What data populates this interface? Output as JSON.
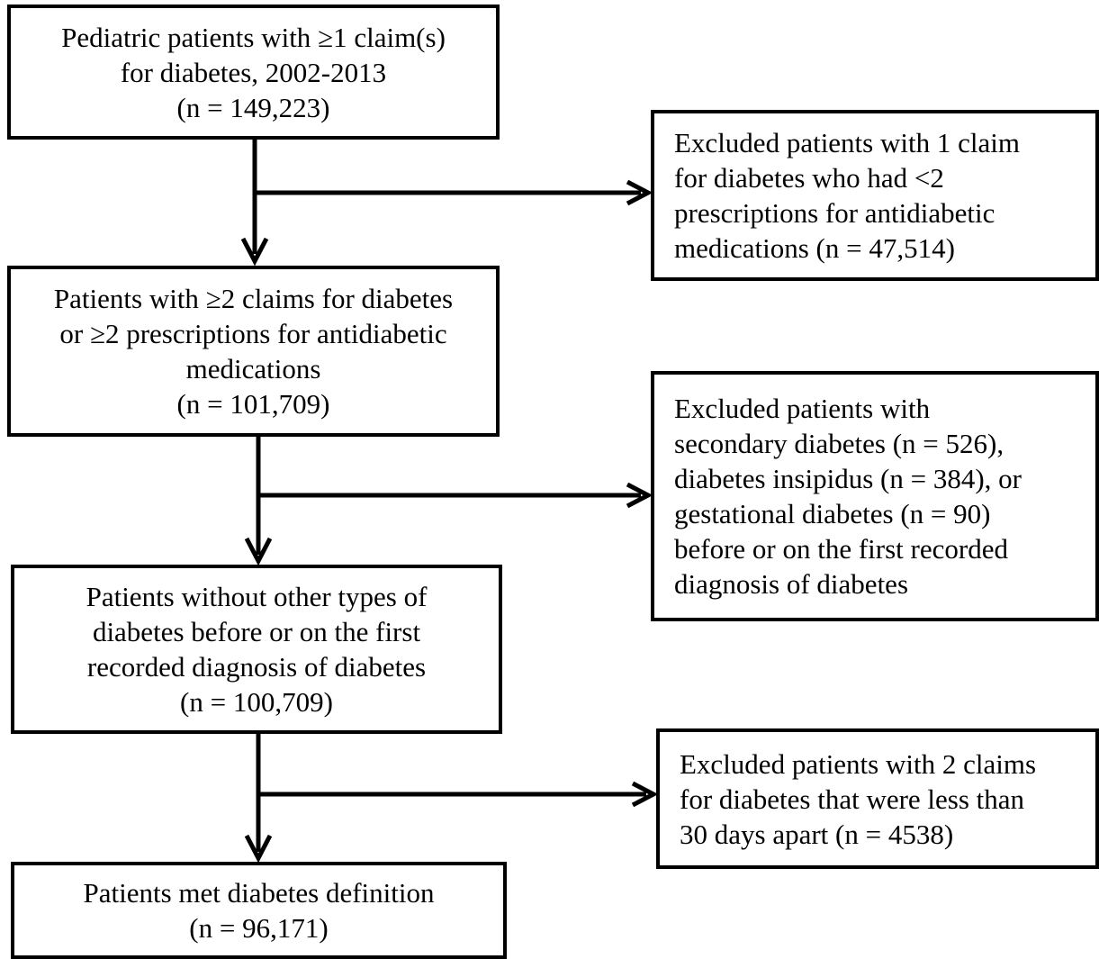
{
  "flowchart": {
    "steps": [
      {
        "lines": [
          "Pediatric patients with ≥1 claim(s)",
          "for diabetes, 2002-2013",
          "(n = 149,223)"
        ]
      },
      {
        "lines": [
          "Patients with ≥2 claims for diabetes",
          "or ≥2 prescriptions for antidiabetic",
          "medications",
          "(n = 101,709)"
        ]
      },
      {
        "lines": [
          "Patients without other types of",
          "diabetes before or on the first",
          "recorded diagnosis of diabetes",
          "(n = 100,709)"
        ]
      },
      {
        "lines": [
          "Patients met diabetes definition",
          "(n = 96,171)"
        ]
      }
    ],
    "exclusions": [
      {
        "lines": [
          "Excluded patients with 1 claim",
          "for diabetes who had <2",
          "prescriptions for antidiabetic",
          "medications (n = 47,514)"
        ]
      },
      {
        "lines": [
          "Excluded patients with",
          "secondary diabetes (n = 526),",
          "diabetes insipidus (n = 384), or",
          "gestational diabetes (n = 90)",
          "before or on the first recorded",
          "diagnosis of diabetes"
        ]
      },
      {
        "lines": [
          "Excluded patients with 2 claims",
          "for diabetes that were less than",
          "30 days apart (n = 4538)"
        ]
      }
    ]
  }
}
